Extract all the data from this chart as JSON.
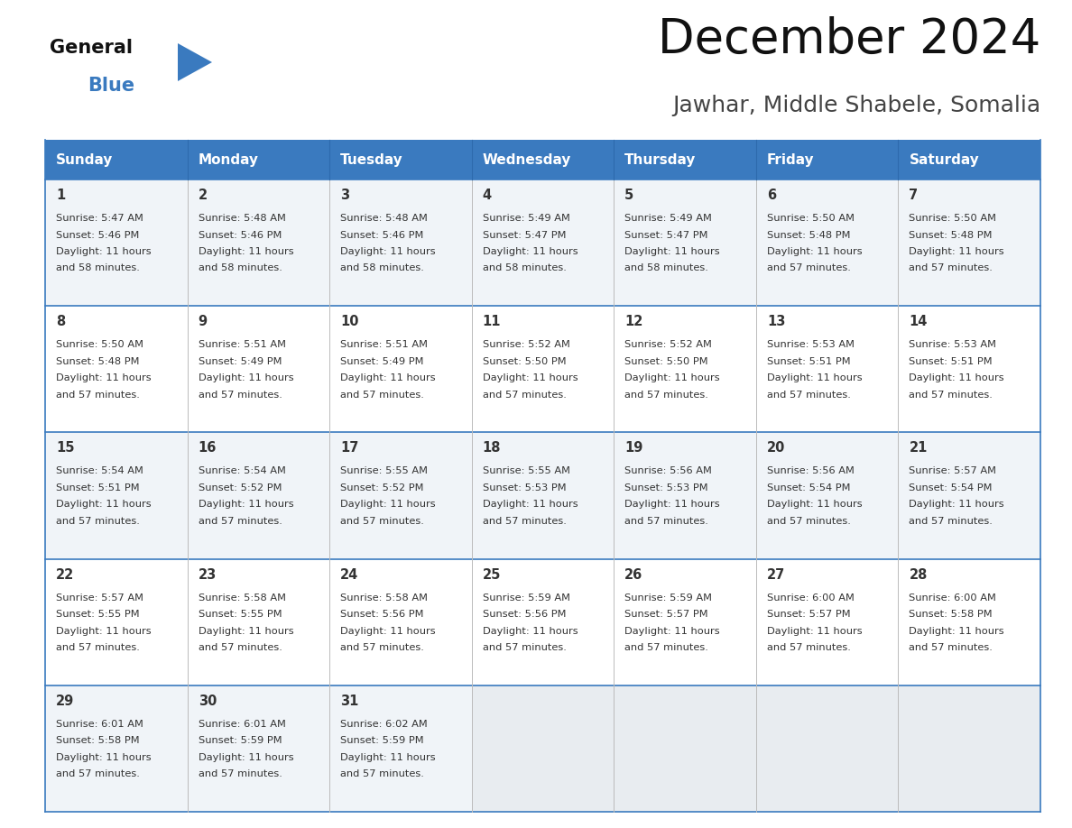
{
  "title": "December 2024",
  "subtitle": "Jawhar, Middle Shabele, Somalia",
  "header_bg_color": "#3a7abf",
  "header_text_color": "#ffffff",
  "cell_bg_even": "#f0f4f8",
  "cell_bg_odd": "#ffffff",
  "cell_bg_empty": "#e8ecf0",
  "border_color": "#3a7abf",
  "text_color": "#333333",
  "days_of_week": [
    "Sunday",
    "Monday",
    "Tuesday",
    "Wednesday",
    "Thursday",
    "Friday",
    "Saturday"
  ],
  "weeks": [
    [
      {
        "day": 1,
        "sunrise": "5:47 AM",
        "sunset": "5:46 PM",
        "daylight_line1": "11 hours",
        "daylight_line2": "and 58 minutes."
      },
      {
        "day": 2,
        "sunrise": "5:48 AM",
        "sunset": "5:46 PM",
        "daylight_line1": "11 hours",
        "daylight_line2": "and 58 minutes."
      },
      {
        "day": 3,
        "sunrise": "5:48 AM",
        "sunset": "5:46 PM",
        "daylight_line1": "11 hours",
        "daylight_line2": "and 58 minutes."
      },
      {
        "day": 4,
        "sunrise": "5:49 AM",
        "sunset": "5:47 PM",
        "daylight_line1": "11 hours",
        "daylight_line2": "and 58 minutes."
      },
      {
        "day": 5,
        "sunrise": "5:49 AM",
        "sunset": "5:47 PM",
        "daylight_line1": "11 hours",
        "daylight_line2": "and 58 minutes."
      },
      {
        "day": 6,
        "sunrise": "5:50 AM",
        "sunset": "5:48 PM",
        "daylight_line1": "11 hours",
        "daylight_line2": "and 57 minutes."
      },
      {
        "day": 7,
        "sunrise": "5:50 AM",
        "sunset": "5:48 PM",
        "daylight_line1": "11 hours",
        "daylight_line2": "and 57 minutes."
      }
    ],
    [
      {
        "day": 8,
        "sunrise": "5:50 AM",
        "sunset": "5:48 PM",
        "daylight_line1": "11 hours",
        "daylight_line2": "and 57 minutes."
      },
      {
        "day": 9,
        "sunrise": "5:51 AM",
        "sunset": "5:49 PM",
        "daylight_line1": "11 hours",
        "daylight_line2": "and 57 minutes."
      },
      {
        "day": 10,
        "sunrise": "5:51 AM",
        "sunset": "5:49 PM",
        "daylight_line1": "11 hours",
        "daylight_line2": "and 57 minutes."
      },
      {
        "day": 11,
        "sunrise": "5:52 AM",
        "sunset": "5:50 PM",
        "daylight_line1": "11 hours",
        "daylight_line2": "and 57 minutes."
      },
      {
        "day": 12,
        "sunrise": "5:52 AM",
        "sunset": "5:50 PM",
        "daylight_line1": "11 hours",
        "daylight_line2": "and 57 minutes."
      },
      {
        "day": 13,
        "sunrise": "5:53 AM",
        "sunset": "5:51 PM",
        "daylight_line1": "11 hours",
        "daylight_line2": "and 57 minutes."
      },
      {
        "day": 14,
        "sunrise": "5:53 AM",
        "sunset": "5:51 PM",
        "daylight_line1": "11 hours",
        "daylight_line2": "and 57 minutes."
      }
    ],
    [
      {
        "day": 15,
        "sunrise": "5:54 AM",
        "sunset": "5:51 PM",
        "daylight_line1": "11 hours",
        "daylight_line2": "and 57 minutes."
      },
      {
        "day": 16,
        "sunrise": "5:54 AM",
        "sunset": "5:52 PM",
        "daylight_line1": "11 hours",
        "daylight_line2": "and 57 minutes."
      },
      {
        "day": 17,
        "sunrise": "5:55 AM",
        "sunset": "5:52 PM",
        "daylight_line1": "11 hours",
        "daylight_line2": "and 57 minutes."
      },
      {
        "day": 18,
        "sunrise": "5:55 AM",
        "sunset": "5:53 PM",
        "daylight_line1": "11 hours",
        "daylight_line2": "and 57 minutes."
      },
      {
        "day": 19,
        "sunrise": "5:56 AM",
        "sunset": "5:53 PM",
        "daylight_line1": "11 hours",
        "daylight_line2": "and 57 minutes."
      },
      {
        "day": 20,
        "sunrise": "5:56 AM",
        "sunset": "5:54 PM",
        "daylight_line1": "11 hours",
        "daylight_line2": "and 57 minutes."
      },
      {
        "day": 21,
        "sunrise": "5:57 AM",
        "sunset": "5:54 PM",
        "daylight_line1": "11 hours",
        "daylight_line2": "and 57 minutes."
      }
    ],
    [
      {
        "day": 22,
        "sunrise": "5:57 AM",
        "sunset": "5:55 PM",
        "daylight_line1": "11 hours",
        "daylight_line2": "and 57 minutes."
      },
      {
        "day": 23,
        "sunrise": "5:58 AM",
        "sunset": "5:55 PM",
        "daylight_line1": "11 hours",
        "daylight_line2": "and 57 minutes."
      },
      {
        "day": 24,
        "sunrise": "5:58 AM",
        "sunset": "5:56 PM",
        "daylight_line1": "11 hours",
        "daylight_line2": "and 57 minutes."
      },
      {
        "day": 25,
        "sunrise": "5:59 AM",
        "sunset": "5:56 PM",
        "daylight_line1": "11 hours",
        "daylight_line2": "and 57 minutes."
      },
      {
        "day": 26,
        "sunrise": "5:59 AM",
        "sunset": "5:57 PM",
        "daylight_line1": "11 hours",
        "daylight_line2": "and 57 minutes."
      },
      {
        "day": 27,
        "sunrise": "6:00 AM",
        "sunset": "5:57 PM",
        "daylight_line1": "11 hours",
        "daylight_line2": "and 57 minutes."
      },
      {
        "day": 28,
        "sunrise": "6:00 AM",
        "sunset": "5:58 PM",
        "daylight_line1": "11 hours",
        "daylight_line2": "and 57 minutes."
      }
    ],
    [
      {
        "day": 29,
        "sunrise": "6:01 AM",
        "sunset": "5:58 PM",
        "daylight_line1": "11 hours",
        "daylight_line2": "and 57 minutes."
      },
      {
        "day": 30,
        "sunrise": "6:01 AM",
        "sunset": "5:59 PM",
        "daylight_line1": "11 hours",
        "daylight_line2": "and 57 minutes."
      },
      {
        "day": 31,
        "sunrise": "6:02 AM",
        "sunset": "5:59 PM",
        "daylight_line1": "11 hours",
        "daylight_line2": "and 57 minutes."
      },
      null,
      null,
      null,
      null
    ]
  ]
}
